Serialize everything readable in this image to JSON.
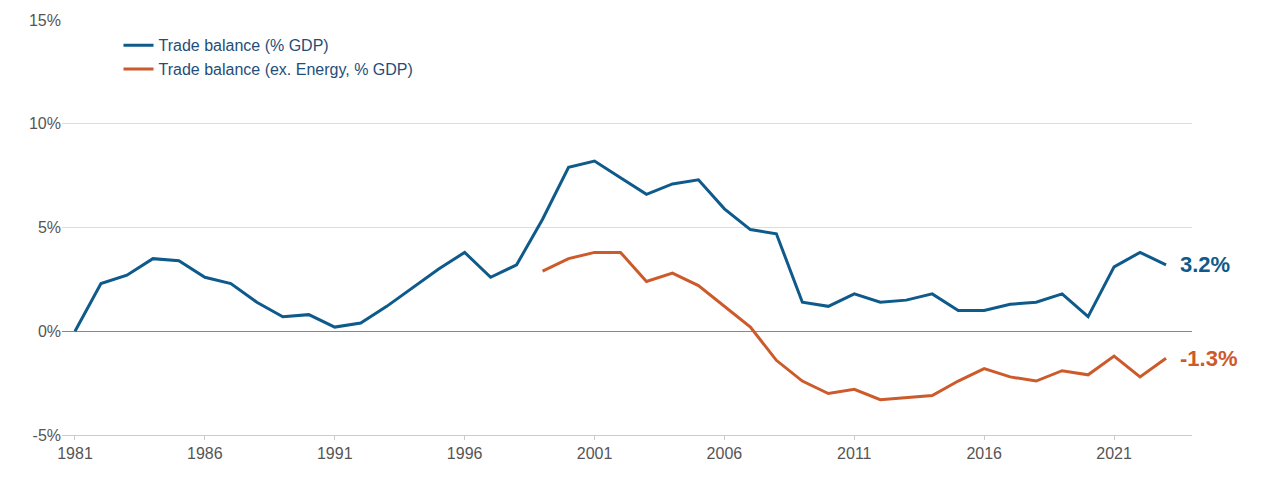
{
  "chart_data": {
    "type": "line",
    "x": [
      1981,
      1982,
      1983,
      1984,
      1985,
      1986,
      1987,
      1988,
      1989,
      1990,
      1991,
      1992,
      1993,
      1994,
      1995,
      1996,
      1997,
      1998,
      1999,
      2000,
      2001,
      2002,
      2003,
      2004,
      2005,
      2006,
      2007,
      2008,
      2009,
      2010,
      2011,
      2012,
      2013,
      2014,
      2015,
      2016,
      2017,
      2018,
      2019,
      2020,
      2021,
      2022,
      2023
    ],
    "series": [
      {
        "name": "Trade balance (% GDP)",
        "color": "#0e5a8a",
        "values": [
          0.0,
          2.3,
          2.7,
          3.5,
          3.4,
          2.6,
          2.3,
          1.4,
          0.7,
          0.8,
          0.2,
          0.4,
          1.2,
          2.1,
          3.0,
          3.8,
          2.6,
          3.2,
          5.4,
          7.9,
          8.2,
          7.4,
          6.6,
          7.1,
          7.3,
          5.9,
          4.9,
          4.7,
          1.4,
          1.2,
          1.8,
          1.4,
          1.5,
          1.8,
          1.0,
          1.0,
          1.3,
          1.4,
          1.8,
          0.7,
          3.1,
          3.8,
          3.2
        ]
      },
      {
        "name": "Trade balance (ex. Energy, % GDP)",
        "color": "#cc5a2a",
        "values": [
          null,
          null,
          null,
          null,
          null,
          null,
          null,
          null,
          null,
          null,
          null,
          null,
          null,
          null,
          null,
          null,
          null,
          null,
          2.9,
          3.5,
          3.8,
          3.8,
          2.4,
          2.8,
          2.2,
          1.2,
          0.2,
          -1.4,
          -2.4,
          -3.0,
          -2.8,
          -3.3,
          -3.2,
          -3.1,
          -2.4,
          -1.8,
          -2.2,
          -2.4,
          -1.9,
          -2.1,
          -1.2,
          -2.2,
          -1.3
        ]
      }
    ],
    "xlim": [
      1980.5,
      2024
    ],
    "xticks": [
      1981,
      1986,
      1991,
      1996,
      2001,
      2006,
      2011,
      2016,
      2021
    ],
    "ylim": [
      -5,
      15
    ],
    "yticks": [
      {
        "value": -5,
        "label": "-5%"
      },
      {
        "value": 0,
        "label": "0%"
      },
      {
        "value": 5,
        "label": "5%"
      },
      {
        "value": 10,
        "label": "10%"
      },
      {
        "value": 15,
        "label": "15%"
      }
    ],
    "grid": true,
    "legend": "upper left",
    "annotations": [
      {
        "text": "3.2%",
        "x": 2023,
        "y": 3.2,
        "color": "#0e5a8a"
      },
      {
        "text": "-1.3%",
        "x": 2023,
        "y": -1.3,
        "color": "#cc5a2a"
      }
    ]
  }
}
